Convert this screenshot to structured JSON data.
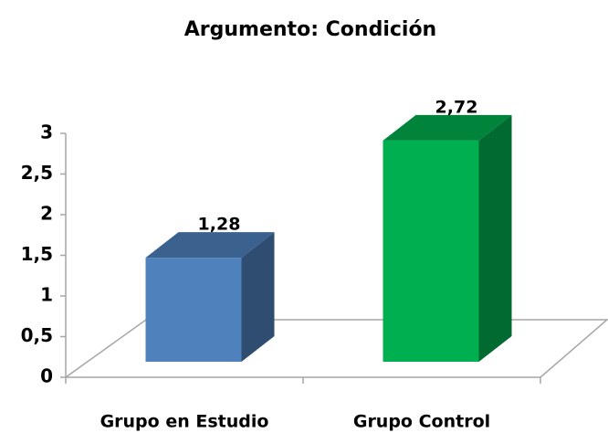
{
  "chart_data": {
    "type": "bar",
    "title": "Argumento: Condición",
    "categories": [
      "Grupo en Estudio",
      "Grupo Control"
    ],
    "values": [
      1.28,
      2.72
    ],
    "value_labels": [
      "1,28",
      "2,72"
    ],
    "colors": [
      "#4f81bd",
      "#00b050"
    ],
    "ylim": [
      0,
      3
    ],
    "yticks": [
      0,
      {
        "value": 0.5,
        "label": "0,5"
      },
      1,
      {
        "value": 1.5,
        "label": "1,5"
      },
      2,
      {
        "value": 2.5,
        "label": "2,5"
      },
      3
    ],
    "grid": false
  }
}
